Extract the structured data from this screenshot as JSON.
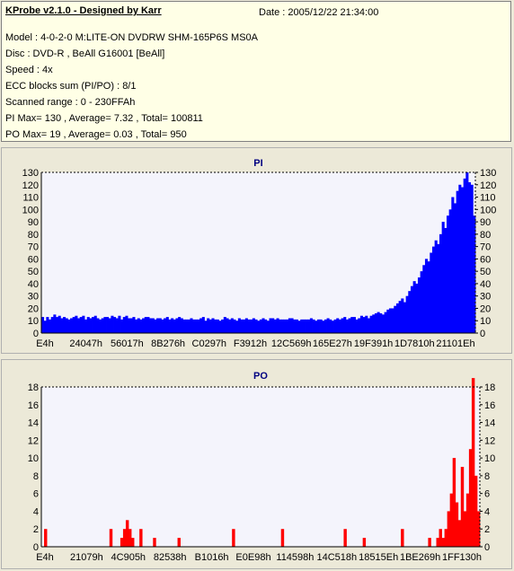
{
  "info": {
    "title": "KProbe v2.1.0 - Designed by Karr",
    "date": "Date : 2005/12/22 21:34:00",
    "lines": [
      "Model : 4-0-2-0 M:LITE-ON DVDRW SHM-165P6S MS0A",
      "Disc : DVD-R , BeAll G16001 [BeAll]",
      "Speed : 4x",
      "ECC blocks sum (PI/PO) : 8/1",
      "Scanned range : 0 - 230FFAh",
      "PI Max= 130 , Average= 7.32 , Total= 100811",
      "PO Max= 19 , Average= 0.03 , Total= 950"
    ]
  },
  "colors": {
    "pi": "#0000ff",
    "po": "#ff0000",
    "plot_bg": "#f4f4fc",
    "frame": "#000000"
  },
  "chart_data": [
    {
      "type": "bar",
      "title": "PI",
      "ylim": [
        0,
        130
      ],
      "yticks": [
        0,
        10,
        20,
        30,
        40,
        50,
        60,
        70,
        80,
        90,
        100,
        110,
        120,
        130
      ],
      "xticks": [
        "E4h",
        "24047h",
        "56017h",
        "8B276h",
        "C0297h",
        "F3912h",
        "12C569h",
        "165E27h",
        "19F391h",
        "1D7810h",
        "21101Eh"
      ],
      "grid": "dotted-top-and-right",
      "series": [
        {
          "color": "#0000ff",
          "values": [
            13,
            10,
            13,
            11,
            13,
            15,
            13,
            14,
            12,
            13,
            12,
            11,
            12,
            13,
            14,
            12,
            13,
            14,
            11,
            13,
            12,
            13,
            14,
            12,
            11,
            12,
            13,
            13,
            12,
            14,
            13,
            12,
            14,
            11,
            13,
            14,
            12,
            12,
            13,
            11,
            12,
            11,
            12,
            13,
            13,
            12,
            12,
            11,
            12,
            12,
            11,
            12,
            13,
            11,
            12,
            11,
            12,
            13,
            12,
            11,
            11,
            11,
            12,
            11,
            11,
            11,
            12,
            13,
            10,
            12,
            11,
            12,
            11,
            11,
            10,
            11,
            13,
            12,
            11,
            12,
            11,
            10,
            12,
            11,
            11,
            12,
            11,
            11,
            12,
            11,
            10,
            11,
            12,
            11,
            10,
            12,
            12,
            11,
            12,
            11,
            11,
            11,
            11,
            12,
            12,
            11,
            11,
            10,
            11,
            11,
            11,
            11,
            12,
            11,
            10,
            11,
            11,
            10,
            11,
            12,
            11,
            10,
            11,
            12,
            11,
            12,
            13,
            11,
            12,
            13,
            13,
            11,
            12,
            14,
            13,
            14,
            12,
            14,
            15,
            16,
            17,
            16,
            15,
            17,
            19,
            20,
            20,
            22,
            24,
            26,
            28,
            25,
            30,
            34,
            38,
            42,
            40,
            45,
            50,
            55,
            60,
            58,
            65,
            70,
            75,
            72,
            80,
            90,
            85,
            95,
            100,
            110,
            105,
            115,
            120,
            118,
            125,
            130,
            122,
            120,
            95
          ]
        }
      ]
    },
    {
      "type": "bar",
      "title": "PO",
      "ylim": [
        0,
        18
      ],
      "yticks": [
        0,
        2,
        4,
        6,
        8,
        10,
        12,
        14,
        16,
        18
      ],
      "xticks": [
        "E4h",
        "21079h",
        "4C905h",
        "82538h",
        "B1016h",
        "E0E98h",
        "114598h",
        "14C518h",
        "18515Eh",
        "1BE269h",
        "1FF130h"
      ],
      "grid": "dotted-top-and-right",
      "series": [
        {
          "color": "#ff0000",
          "values": [
            0,
            2,
            0,
            0,
            0,
            0,
            0,
            0,
            0,
            0,
            0,
            0,
            0,
            0,
            0,
            0,
            0,
            0,
            0,
            0,
            0,
            0,
            0,
            0,
            0,
            2,
            0,
            0,
            0,
            1,
            2,
            3,
            2,
            1,
            0,
            0,
            2,
            0,
            0,
            0,
            0,
            1,
            0,
            0,
            0,
            0,
            0,
            0,
            0,
            0,
            1,
            0,
            0,
            0,
            0,
            0,
            0,
            0,
            0,
            0,
            0,
            0,
            0,
            0,
            0,
            0,
            0,
            0,
            0,
            0,
            2,
            0,
            0,
            0,
            0,
            0,
            0,
            0,
            0,
            0,
            0,
            0,
            0,
            0,
            0,
            0,
            0,
            0,
            2,
            0,
            0,
            0,
            0,
            0,
            0,
            0,
            0,
            0,
            0,
            0,
            0,
            0,
            0,
            0,
            0,
            0,
            0,
            0,
            0,
            0,
            0,
            2,
            0,
            0,
            0,
            0,
            0,
            0,
            1,
            0,
            0,
            0,
            0,
            0,
            0,
            0,
            0,
            0,
            0,
            0,
            0,
            0,
            2,
            0,
            0,
            0,
            0,
            0,
            0,
            0,
            0,
            0,
            1,
            0,
            0,
            1,
            2,
            1,
            2,
            4,
            6,
            10,
            5,
            3,
            9,
            4,
            6,
            11,
            19,
            8,
            4
          ]
        }
      ]
    }
  ]
}
